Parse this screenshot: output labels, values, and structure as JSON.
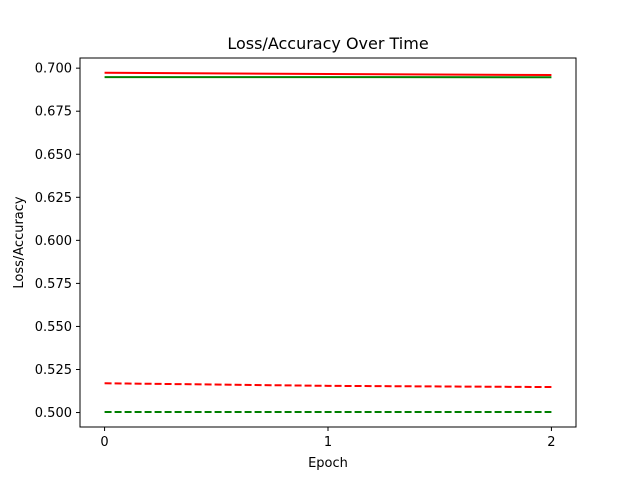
{
  "chart_data": {
    "type": "line",
    "title": "Loss/Accuracy Over Time",
    "xlabel": "Epoch",
    "ylabel": "Loss/Accuracy",
    "x": [
      0,
      1,
      2
    ],
    "xticks": [
      "0",
      "1",
      "2"
    ],
    "yticks": [
      "0.500",
      "0.525",
      "0.550",
      "0.575",
      "0.600",
      "0.625",
      "0.650",
      "0.675",
      "0.700"
    ],
    "xlim": [
      -0.11,
      2.11
    ],
    "ylim": [
      0.4916,
      0.7059
    ],
    "grid": false,
    "series": [
      {
        "values": [
          0.6973,
          0.6966,
          0.696
        ],
        "color": "#ff0000",
        "linestyle": "solid"
      },
      {
        "values": [
          0.6948,
          0.6948,
          0.6947
        ],
        "color": "#008000",
        "linestyle": "solid"
      },
      {
        "values": [
          0.517,
          0.5155,
          0.5148
        ],
        "color": "#ff0000",
        "linestyle": "dashed"
      },
      {
        "values": [
          0.5003,
          0.5003,
          0.5003
        ],
        "color": "#008000",
        "linestyle": "dashed"
      }
    ]
  }
}
